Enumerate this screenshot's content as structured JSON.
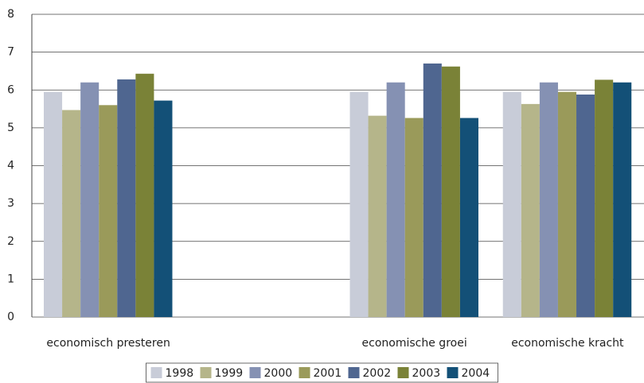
{
  "chart_data": {
    "type": "bar",
    "categories": [
      "economisch presteren",
      null,
      "economische groei",
      "economische kracht"
    ],
    "series": [
      {
        "name": "1998",
        "color": "#c8ccd8",
        "values": [
          5.95,
          null,
          5.95,
          5.95
        ]
      },
      {
        "name": "1999",
        "color": "#b5b58a",
        "values": [
          5.47,
          null,
          5.32,
          5.63
        ]
      },
      {
        "name": "2000",
        "color": "#8591b3",
        "values": [
          6.2,
          null,
          6.2,
          6.2
        ]
      },
      {
        "name": "2001",
        "color": "#9a9a5a",
        "values": [
          5.6,
          null,
          5.26,
          5.95
        ]
      },
      {
        "name": "2002",
        "color": "#4f6690",
        "values": [
          6.28,
          null,
          6.7,
          5.88
        ]
      },
      {
        "name": "2003",
        "color": "#7a8237",
        "values": [
          6.43,
          null,
          6.62,
          6.27
        ]
      },
      {
        "name": "2004",
        "color": "#135077",
        "values": [
          5.72,
          null,
          5.26,
          6.2
        ]
      }
    ],
    "ylim": [
      0,
      8
    ],
    "yticks": [
      0,
      1,
      2,
      3,
      4,
      5,
      6,
      7,
      8
    ],
    "grid": true,
    "legend": "bottom"
  }
}
